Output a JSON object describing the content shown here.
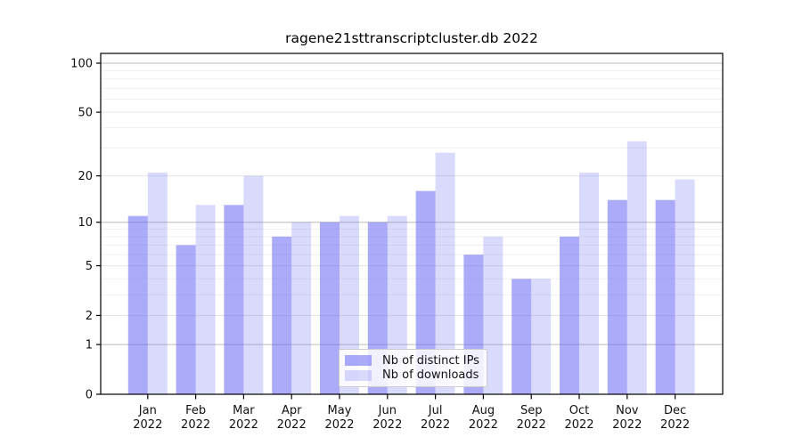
{
  "chart_data": {
    "type": "bar",
    "title": "ragene21sttranscriptcluster.db 2022",
    "categories": [
      {
        "month": "Jan",
        "year": "2022"
      },
      {
        "month": "Feb",
        "year": "2022"
      },
      {
        "month": "Mar",
        "year": "2022"
      },
      {
        "month": "Apr",
        "year": "2022"
      },
      {
        "month": "May",
        "year": "2022"
      },
      {
        "month": "Jun",
        "year": "2022"
      },
      {
        "month": "Jul",
        "year": "2022"
      },
      {
        "month": "Aug",
        "year": "2022"
      },
      {
        "month": "Sep",
        "year": "2022"
      },
      {
        "month": "Oct",
        "year": "2022"
      },
      {
        "month": "Nov",
        "year": "2022"
      },
      {
        "month": "Dec",
        "year": "2022"
      }
    ],
    "series": [
      {
        "name": "Nb of distinct IPs",
        "color": "rgba(102,102,245,0.55)",
        "values": [
          11,
          7,
          13,
          8,
          10,
          10,
          16,
          6,
          4,
          8,
          14,
          14
        ]
      },
      {
        "name": "Nb of downloads",
        "color": "rgba(102,102,245,0.24)",
        "values": [
          21,
          13,
          20,
          10,
          11,
          11,
          28,
          8,
          4,
          21,
          33,
          19
        ]
      }
    ],
    "xlabel": "",
    "ylabel": "",
    "y_scale": "log10(1+x)",
    "ylim": [
      0,
      100
    ],
    "y_ticks": [
      0,
      1,
      2,
      5,
      10,
      20,
      50,
      100
    ],
    "y_major_gridlines": [
      1,
      10,
      100
    ],
    "y_mid_gridlines": [
      2,
      5,
      20,
      50
    ],
    "y_minor_gridlines": [
      3,
      4,
      6,
      7,
      8,
      9,
      30,
      40,
      60,
      70,
      80,
      90
    ],
    "grid": "on",
    "legend_position": "bottom-center-inside",
    "colors": {
      "bar_dark": "rgba(102,102,245,0.55)",
      "bar_light": "rgba(102,102,245,0.24)",
      "grid_major": "#bcbcbc",
      "grid_mid": "#e4e4e4",
      "grid_minor": "#f1f1f1",
      "frame": "#000000",
      "text": "#111111"
    }
  }
}
